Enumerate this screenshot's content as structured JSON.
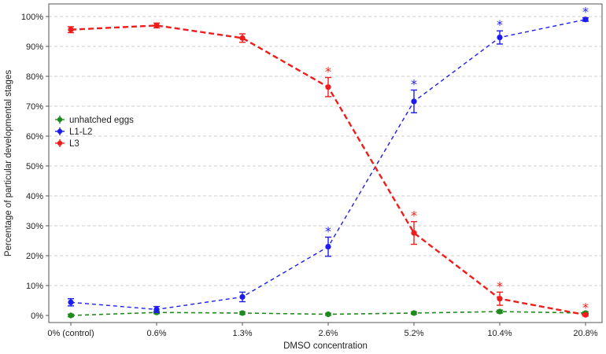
{
  "chart_data": {
    "type": "line",
    "xlabel": "DMSO concentration",
    "ylabel": "Percentage of particular developmental stages",
    "categories": [
      "0% (control)",
      "0.6%",
      "1.3%",
      "2.6%",
      "5.2%",
      "10.4%",
      "20.8%"
    ],
    "ylim": [
      0,
      100
    ],
    "yticks": [
      "0%",
      "10%",
      "20%",
      "30%",
      "40%",
      "50%",
      "60%",
      "70%",
      "80%",
      "90%",
      "100%"
    ],
    "grid": "horizontal dashed",
    "legend_position": "left-middle",
    "significance_marker": "*",
    "series": [
      {
        "name": "unhatched eggs",
        "color": "#1e8a1e",
        "values": [
          0.0,
          1.0,
          0.8,
          0.4,
          0.8,
          1.3,
          0.8
        ],
        "errors": [
          0.4,
          0.4,
          0.4,
          0.3,
          0.4,
          0.5,
          0.4
        ],
        "significant": [
          false,
          false,
          false,
          false,
          false,
          false,
          false
        ]
      },
      {
        "name": "L1-L2",
        "color": "#1c1cf0",
        "values": [
          4.4,
          2.0,
          6.2,
          23.0,
          71.6,
          93.0,
          99.0
        ],
        "errors": [
          1.2,
          1.0,
          1.6,
          3.2,
          3.8,
          2.2,
          0.6
        ],
        "significant": [
          false,
          false,
          false,
          true,
          true,
          true,
          true
        ]
      },
      {
        "name": "L3",
        "color": "#f01c1c",
        "values": [
          95.6,
          97.0,
          92.8,
          76.4,
          27.6,
          5.6,
          0.2
        ],
        "errors": [
          1.0,
          0.8,
          1.4,
          3.2,
          3.8,
          2.2,
          0.4
        ],
        "significant": [
          false,
          false,
          false,
          true,
          true,
          true,
          true
        ]
      }
    ]
  }
}
